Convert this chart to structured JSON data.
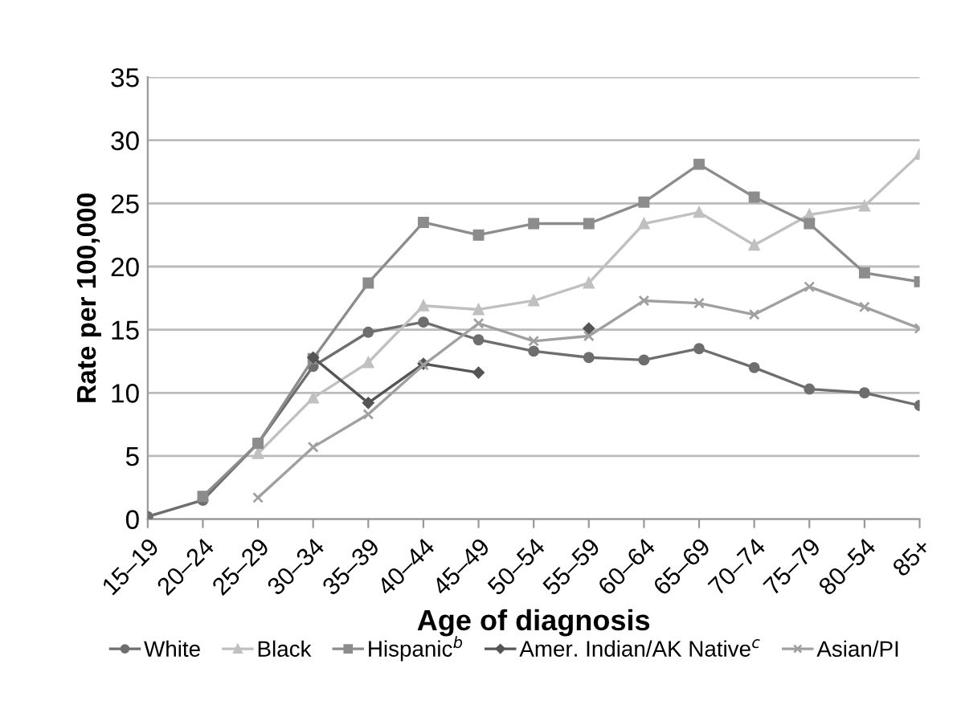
{
  "chart_data": {
    "type": "line",
    "xlabel": "Age of diagnosis",
    "ylabel": "Rate per 100,000",
    "categories": [
      "15–19",
      "20–24",
      "25–29",
      "30–34",
      "35–39",
      "40–44",
      "45–49",
      "50–54",
      "55–59",
      "60–64",
      "65–69",
      "70–74",
      "75–79",
      "80–54",
      "85+"
    ],
    "series": [
      {
        "name": "White",
        "color": "#6e6e6e",
        "marker": "circle",
        "values": [
          0.2,
          1.5,
          6.0,
          12.1,
          14.8,
          15.6,
          14.2,
          13.3,
          12.8,
          12.6,
          13.5,
          12.0,
          10.3,
          10.0,
          9.0
        ]
      },
      {
        "name": "Black",
        "color": "#c0c0c0",
        "marker": "triangle",
        "values": [
          null,
          null,
          5.2,
          9.6,
          12.4,
          16.9,
          16.6,
          17.3,
          18.7,
          23.4,
          24.3,
          21.7,
          24.1,
          24.8,
          28.9
        ]
      },
      {
        "name": "Hispanic$^{b}$",
        "color": "#8c8c8c",
        "marker": "square",
        "values": [
          null,
          1.8,
          6.0,
          12.7,
          18.7,
          23.5,
          22.5,
          23.4,
          23.4,
          25.1,
          28.1,
          25.5,
          23.4,
          19.5,
          18.8
        ]
      },
      {
        "name": "Amer. Indian/AK Native$^{c}$",
        "color": "#555555",
        "marker": "diamond",
        "values": [
          null,
          null,
          null,
          12.8,
          9.2,
          12.3,
          11.6,
          null,
          15.1,
          null,
          null,
          null,
          null,
          null,
          null
        ]
      },
      {
        "name": "Asian/PI",
        "color": "#a0a0a0",
        "marker": "cross",
        "values": [
          null,
          null,
          1.7,
          5.7,
          8.3,
          12.2,
          15.5,
          14.1,
          14.5,
          17.3,
          17.1,
          16.2,
          18.4,
          16.8,
          15.1
        ]
      }
    ],
    "ylim": [
      0,
      35
    ],
    "yticks": [
      0,
      5,
      10,
      15,
      20,
      25,
      30,
      35
    ],
    "grid": "y",
    "legend": "bottom"
  }
}
